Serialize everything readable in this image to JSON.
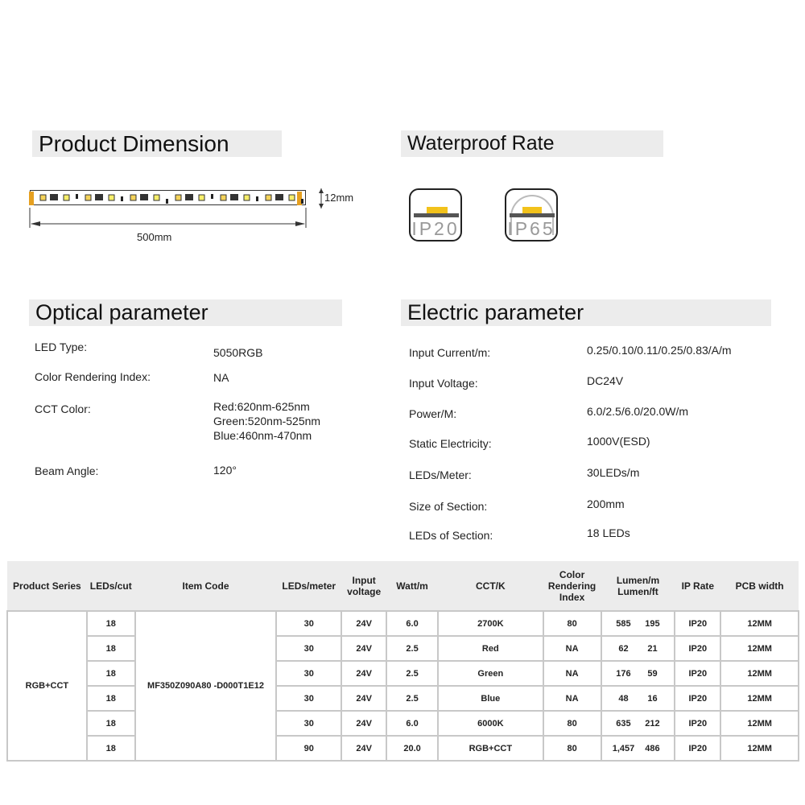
{
  "sections": {
    "dimension": {
      "title": "Product Dimension",
      "length": "500mm",
      "width": "12mm"
    },
    "waterproof": {
      "title": "Waterproof Rate",
      "badges": [
        {
          "label": "IP20",
          "icon": "ip20-open-icon"
        },
        {
          "label": "IP65",
          "icon": "ip65-dome-icon"
        }
      ],
      "accent": "#f2c21b"
    },
    "optical": {
      "title": "Optical parameter",
      "items": [
        {
          "label": "LED  Type:",
          "value": "5050RGB"
        },
        {
          "label": "Color Rendering Index:",
          "value": "NA"
        },
        {
          "label": "CCT Color:",
          "lines": [
            "Red:620nm-625nm",
            "Green:520nm-525nm",
            "Blue:460nm-470nm"
          ]
        },
        {
          "label": "Beam  Angle:",
          "value": "120°"
        }
      ]
    },
    "electric": {
      "title": "Electric parameter",
      "items": [
        {
          "label": "Input Current/m:",
          "value": "0.25/0.10/0.11/0.25/0.83/A/m"
        },
        {
          "label": "Input Voltage:",
          "value": "DC24V"
        },
        {
          "label": "Power/M:",
          "value": "6.0/2.5/6.0/20.0W/m"
        },
        {
          "label": "Static Electricity:",
          "value": "1000V(ESD)"
        },
        {
          "label": "LEDs/Meter:",
          "value": "30LEDs/m"
        },
        {
          "label": "Size of Section:",
          "value": "200mm"
        },
        {
          "label": "LEDs of Section:",
          "value": "18 LEDs"
        }
      ]
    }
  },
  "table": {
    "headers": [
      "Product  Series",
      "LEDs/cut",
      "Item Code",
      "LEDs/meter",
      "Input voltage",
      "Watt/m",
      "CCT/K",
      "Color Rendering Index",
      "Lumen/m Lumen/ft",
      "IP Rate",
      "PCB width"
    ],
    "series": "RGB+CCT",
    "item_code": "MF350Z090A80 -D000T1E12",
    "rows": [
      {
        "cut": "18",
        "leds": "30",
        "volt": "24V",
        "watt": "6.0",
        "cct": "2700K",
        "cri": "80",
        "lm": "585",
        "lmft": "195",
        "ip": "IP20",
        "pcb": "12MM"
      },
      {
        "cut": "18",
        "leds": "30",
        "volt": "24V",
        "watt": "2.5",
        "cct": "Red",
        "cri": "NA",
        "lm": "62",
        "lmft": "21",
        "ip": "IP20",
        "pcb": "12MM"
      },
      {
        "cut": "18",
        "leds": "30",
        "volt": "24V",
        "watt": "2.5",
        "cct": "Green",
        "cri": "NA",
        "lm": "176",
        "lmft": "59",
        "ip": "IP20",
        "pcb": "12MM"
      },
      {
        "cut": "18",
        "leds": "30",
        "volt": "24V",
        "watt": "2.5",
        "cct": "Blue",
        "cri": "NA",
        "lm": "48",
        "lmft": "16",
        "ip": "IP20",
        "pcb": "12MM"
      },
      {
        "cut": "18",
        "leds": "30",
        "volt": "24V",
        "watt": "6.0",
        "cct": "6000K",
        "cri": "80",
        "lm": "635",
        "lmft": "212",
        "ip": "IP20",
        "pcb": "12MM"
      },
      {
        "cut": "18",
        "leds": "90",
        "volt": "24V",
        "watt": "20.0",
        "cct": "RGB+CCT",
        "cri": "80",
        "lm": "1,457",
        "lmft": "486",
        "ip": "IP20",
        "pcb": "12MM"
      }
    ]
  }
}
